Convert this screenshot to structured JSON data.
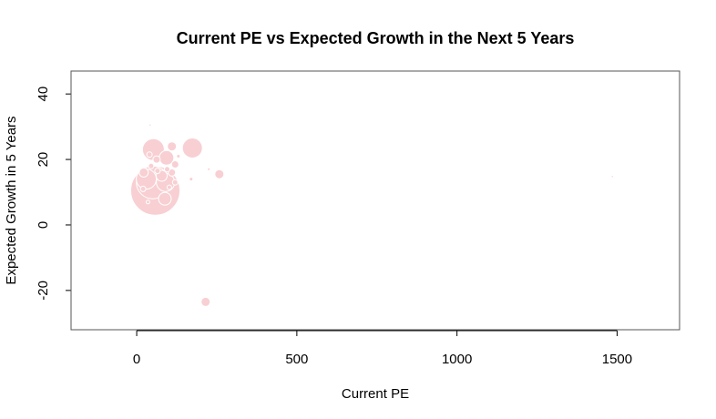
{
  "chart_data": {
    "type": "scatter",
    "title": "Current PE vs Expected Growth in the Next 5 Years",
    "xlabel": "Current PE",
    "ylabel": "Expected Growth in 5 Years",
    "xlim": [
      -205,
      1695
    ],
    "ylim": [
      -32,
      47
    ],
    "xticks": [
      0,
      500,
      1000,
      1500
    ],
    "yticks": [
      -20,
      0,
      20,
      40
    ],
    "grid": false,
    "point_color": "#f8cfd2",
    "point_edge": "#ffffff",
    "points": [
      {
        "x": 58,
        "y": 10.5,
        "size": 27
      },
      {
        "x": 50,
        "y": 13.0,
        "size": 18
      },
      {
        "x": 30,
        "y": 14.0,
        "size": 11
      },
      {
        "x": 52,
        "y": 23.0,
        "size": 12
      },
      {
        "x": 174,
        "y": 23.5,
        "size": 11
      },
      {
        "x": 90,
        "y": 13.0,
        "size": 10
      },
      {
        "x": 93,
        "y": 20.5,
        "size": 8
      },
      {
        "x": 78,
        "y": 15.0,
        "size": 6
      },
      {
        "x": 88,
        "y": 8.0,
        "size": 7
      },
      {
        "x": 22,
        "y": 16.0,
        "size": 5
      },
      {
        "x": 110,
        "y": 24.0,
        "size": 5
      },
      {
        "x": 110,
        "y": 16.0,
        "size": 4
      },
      {
        "x": 62,
        "y": 20.0,
        "size": 4
      },
      {
        "x": 120,
        "y": 18.5,
        "size": 4
      },
      {
        "x": 40,
        "y": 21.5,
        "size": 3
      },
      {
        "x": 65,
        "y": 16.5,
        "size": 3
      },
      {
        "x": 95,
        "y": 17.0,
        "size": 3
      },
      {
        "x": 120,
        "y": 13.0,
        "size": 3
      },
      {
        "x": 20,
        "y": 11.0,
        "size": 3
      },
      {
        "x": 45,
        "y": 18.0,
        "size": 3
      },
      {
        "x": 35,
        "y": 7.0,
        "size": 2
      },
      {
        "x": 130,
        "y": 21.0,
        "size": 2
      },
      {
        "x": 102,
        "y": 11.5,
        "size": 2.5
      },
      {
        "x": 215,
        "y": -23.5,
        "size": 5
      },
      {
        "x": 258,
        "y": 15.5,
        "size": 5
      },
      {
        "x": 225,
        "y": 17.0,
        "size": 1.5
      },
      {
        "x": 170,
        "y": 14.0,
        "size": 2
      },
      {
        "x": 42,
        "y": 30.5,
        "size": 1.2
      },
      {
        "x": 1485,
        "y": 14.8,
        "size": 1.2
      }
    ]
  }
}
